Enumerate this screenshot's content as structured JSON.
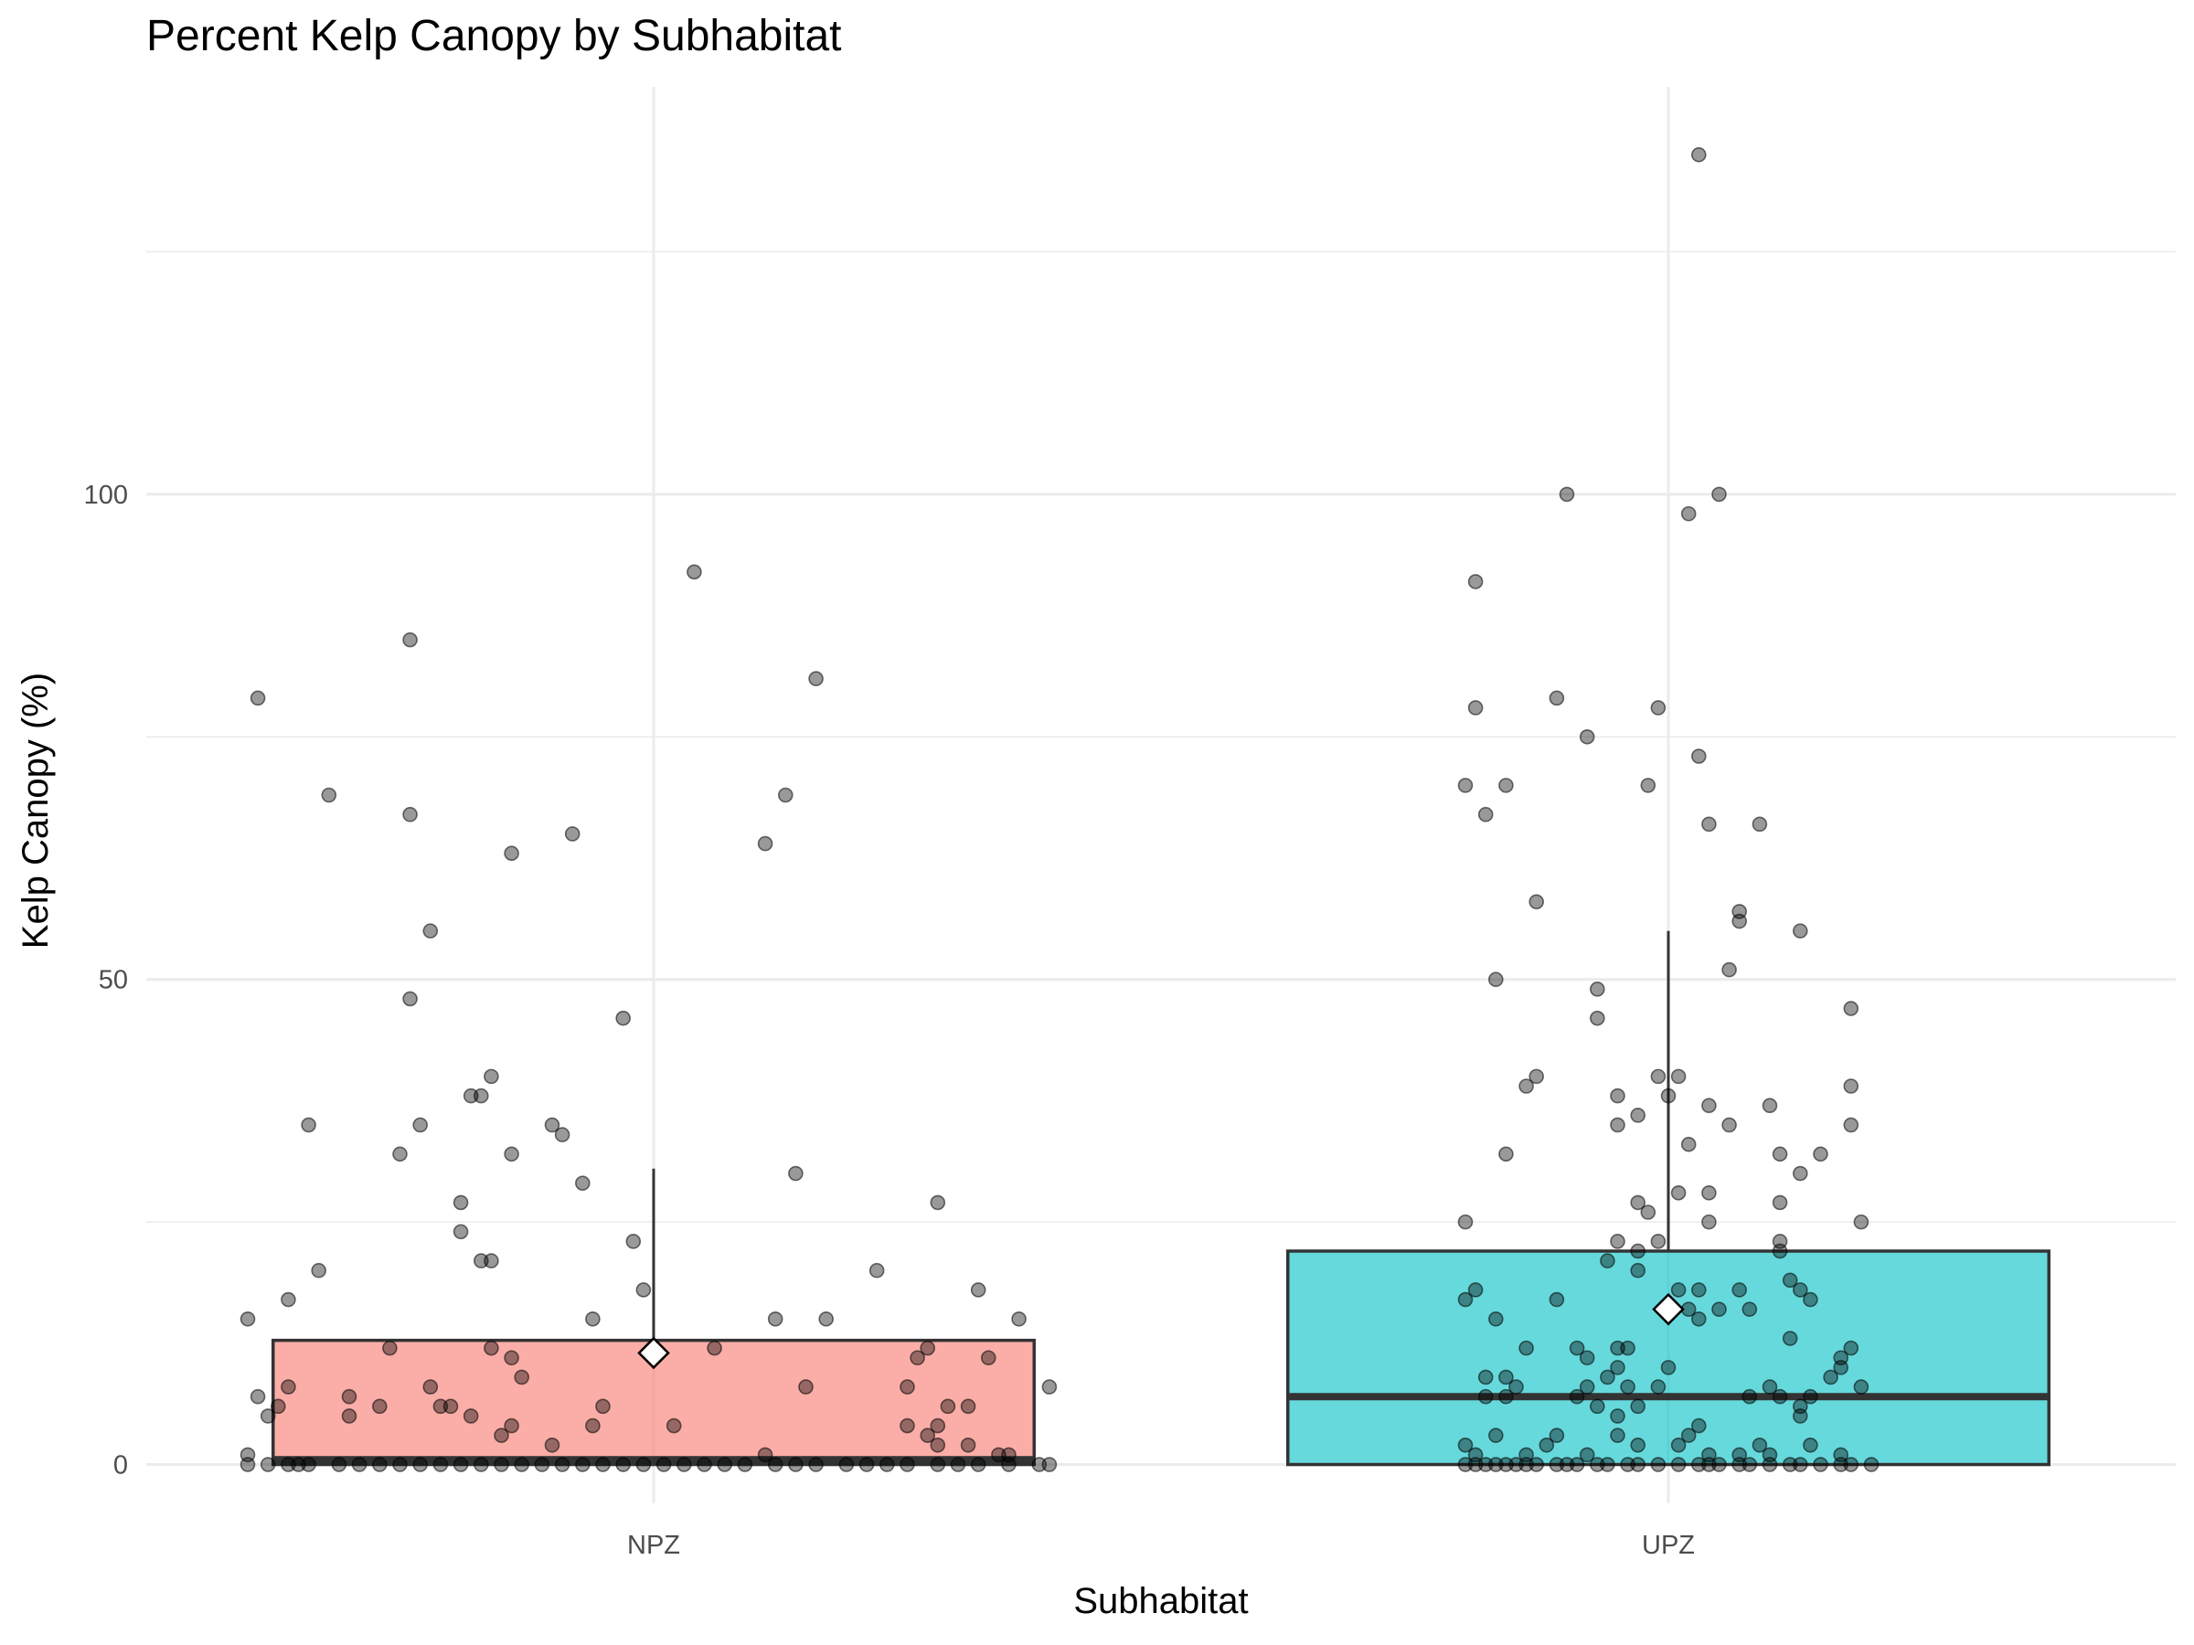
{
  "chart_data": {
    "type": "boxplot",
    "title": "Percent Kelp Canopy by Subhabitat",
    "xlabel": "Subhabitat",
    "ylabel": "Kelp Canopy (%)",
    "categories": [
      "NPZ",
      "UPZ"
    ],
    "ylim": [
      -4,
      142
    ],
    "yticks": [
      0,
      50,
      100
    ],
    "grid": true,
    "legend": "none",
    "boxes": [
      {
        "category": "NPZ",
        "color": "#F8766D",
        "q1": 0,
        "median": 0.5,
        "q3": 12.8,
        "whisker_low": 0,
        "whisker_high": 30.5,
        "mean": 11.5
      },
      {
        "category": "UPZ",
        "color": "#00BFC4",
        "q1": 0,
        "median": 7,
        "q3": 22,
        "whisker_low": 0,
        "whisker_high": 55,
        "mean": 16
      }
    ],
    "points": {
      "NPZ": [
        {
          "x": -0.39,
          "y": 79
        },
        {
          "x": 0.04,
          "y": 92
        },
        {
          "x": -0.24,
          "y": 85
        },
        {
          "x": 0.16,
          "y": 81
        },
        {
          "x": -0.32,
          "y": 69
        },
        {
          "x": 0.13,
          "y": 69
        },
        {
          "x": -0.24,
          "y": 67
        },
        {
          "x": -0.08,
          "y": 65
        },
        {
          "x": 0.11,
          "y": 64
        },
        {
          "x": -0.14,
          "y": 63
        },
        {
          "x": -0.22,
          "y": 55
        },
        {
          "x": -0.24,
          "y": 48
        },
        {
          "x": -0.03,
          "y": 46
        },
        {
          "x": -0.16,
          "y": 40
        },
        {
          "x": -0.18,
          "y": 38
        },
        {
          "x": -0.17,
          "y": 38
        },
        {
          "x": -0.34,
          "y": 35
        },
        {
          "x": -0.23,
          "y": 35
        },
        {
          "x": -0.1,
          "y": 35
        },
        {
          "x": -0.09,
          "y": 34
        },
        {
          "x": -0.25,
          "y": 32
        },
        {
          "x": -0.14,
          "y": 32
        },
        {
          "x": 0.14,
          "y": 30
        },
        {
          "x": -0.07,
          "y": 29
        },
        {
          "x": -0.19,
          "y": 27
        },
        {
          "x": 0.28,
          "y": 27
        },
        {
          "x": -0.19,
          "y": 24
        },
        {
          "x": -0.02,
          "y": 23
        },
        {
          "x": -0.17,
          "y": 21
        },
        {
          "x": -0.16,
          "y": 21
        },
        {
          "x": -0.33,
          "y": 20
        },
        {
          "x": 0.22,
          "y": 20
        },
        {
          "x": -0.36,
          "y": 17
        },
        {
          "x": -0.01,
          "y": 18
        },
        {
          "x": 0.32,
          "y": 18
        },
        {
          "x": -0.4,
          "y": 15
        },
        {
          "x": -0.06,
          "y": 15
        },
        {
          "x": 0.12,
          "y": 15
        },
        {
          "x": 0.17,
          "y": 15
        },
        {
          "x": 0.36,
          "y": 15
        },
        {
          "x": -0.26,
          "y": 12
        },
        {
          "x": -0.16,
          "y": 12
        },
        {
          "x": 0.06,
          "y": 12
        },
        {
          "x": 0.27,
          "y": 12
        },
        {
          "x": -0.14,
          "y": 11
        },
        {
          "x": 0.26,
          "y": 11
        },
        {
          "x": 0.33,
          "y": 11
        },
        {
          "x": -0.13,
          "y": 9
        },
        {
          "x": -0.36,
          "y": 8
        },
        {
          "x": -0.22,
          "y": 8
        },
        {
          "x": 0.15,
          "y": 8
        },
        {
          "x": 0.25,
          "y": 8
        },
        {
          "x": 0.39,
          "y": 8
        },
        {
          "x": -0.39,
          "y": 7
        },
        {
          "x": -0.3,
          "y": 7
        },
        {
          "x": -0.21,
          "y": 6
        },
        {
          "x": -0.37,
          "y": 6
        },
        {
          "x": -0.27,
          "y": 6
        },
        {
          "x": -0.2,
          "y": 6
        },
        {
          "x": -0.05,
          "y": 6
        },
        {
          "x": 0.29,
          "y": 6
        },
        {
          "x": 0.31,
          "y": 6
        },
        {
          "x": -0.38,
          "y": 5
        },
        {
          "x": -0.3,
          "y": 5
        },
        {
          "x": -0.18,
          "y": 5
        },
        {
          "x": -0.14,
          "y": 4
        },
        {
          "x": -0.06,
          "y": 4
        },
        {
          "x": 0.02,
          "y": 4
        },
        {
          "x": 0.25,
          "y": 4
        },
        {
          "x": 0.28,
          "y": 4
        },
        {
          "x": -0.15,
          "y": 3
        },
        {
          "x": 0.27,
          "y": 3
        },
        {
          "x": -0.1,
          "y": 2
        },
        {
          "x": 0.28,
          "y": 2
        },
        {
          "x": 0.31,
          "y": 2
        },
        {
          "x": -0.4,
          "y": 1
        },
        {
          "x": 0.11,
          "y": 1
        },
        {
          "x": 0.34,
          "y": 1
        },
        {
          "x": 0.35,
          "y": 1
        },
        {
          "x": -0.4,
          "y": 0
        },
        {
          "x": -0.38,
          "y": 0
        },
        {
          "x": -0.36,
          "y": 0
        },
        {
          "x": -0.35,
          "y": 0
        },
        {
          "x": -0.34,
          "y": 0
        },
        {
          "x": -0.31,
          "y": 0
        },
        {
          "x": -0.29,
          "y": 0
        },
        {
          "x": -0.27,
          "y": 0
        },
        {
          "x": -0.25,
          "y": 0
        },
        {
          "x": -0.23,
          "y": 0
        },
        {
          "x": -0.21,
          "y": 0
        },
        {
          "x": -0.19,
          "y": 0
        },
        {
          "x": -0.17,
          "y": 0
        },
        {
          "x": -0.15,
          "y": 0
        },
        {
          "x": -0.13,
          "y": 0
        },
        {
          "x": -0.11,
          "y": 0
        },
        {
          "x": -0.09,
          "y": 0
        },
        {
          "x": -0.07,
          "y": 0
        },
        {
          "x": -0.05,
          "y": 0
        },
        {
          "x": -0.03,
          "y": 0
        },
        {
          "x": -0.01,
          "y": 0
        },
        {
          "x": 0.01,
          "y": 0
        },
        {
          "x": 0.03,
          "y": 0
        },
        {
          "x": 0.05,
          "y": 0
        },
        {
          "x": 0.07,
          "y": 0
        },
        {
          "x": 0.09,
          "y": 0
        },
        {
          "x": 0.12,
          "y": 0
        },
        {
          "x": 0.14,
          "y": 0
        },
        {
          "x": 0.16,
          "y": 0
        },
        {
          "x": 0.19,
          "y": 0
        },
        {
          "x": 0.21,
          "y": 0
        },
        {
          "x": 0.23,
          "y": 0
        },
        {
          "x": 0.25,
          "y": 0
        },
        {
          "x": 0.28,
          "y": 0
        },
        {
          "x": 0.3,
          "y": 0
        },
        {
          "x": 0.32,
          "y": 0
        },
        {
          "x": 0.35,
          "y": 0
        },
        {
          "x": 0.38,
          "y": 0
        },
        {
          "x": 0.39,
          "y": 0
        }
      ],
      "UPZ": [
        {
          "x": 0.03,
          "y": 135
        },
        {
          "x": -0.1,
          "y": 100
        },
        {
          "x": 0.05,
          "y": 100
        },
        {
          "x": 0.02,
          "y": 98
        },
        {
          "x": -0.19,
          "y": 91
        },
        {
          "x": -0.19,
          "y": 78
        },
        {
          "x": -0.11,
          "y": 79
        },
        {
          "x": -0.01,
          "y": 78
        },
        {
          "x": -0.08,
          "y": 75
        },
        {
          "x": 0.03,
          "y": 73
        },
        {
          "x": -0.2,
          "y": 70
        },
        {
          "x": -0.16,
          "y": 70
        },
        {
          "x": -0.02,
          "y": 70
        },
        {
          "x": -0.18,
          "y": 67
        },
        {
          "x": 0.04,
          "y": 66
        },
        {
          "x": 0.09,
          "y": 66
        },
        {
          "x": -0.13,
          "y": 58
        },
        {
          "x": 0.07,
          "y": 57
        },
        {
          "x": 0.07,
          "y": 56
        },
        {
          "x": 0.13,
          "y": 55
        },
        {
          "x": 0.06,
          "y": 51
        },
        {
          "x": -0.17,
          "y": 50
        },
        {
          "x": -0.07,
          "y": 49
        },
        {
          "x": 0.18,
          "y": 47
        },
        {
          "x": -0.07,
          "y": 46
        },
        {
          "x": -0.13,
          "y": 40
        },
        {
          "x": -0.01,
          "y": 40
        },
        {
          "x": 0.01,
          "y": 40
        },
        {
          "x": -0.14,
          "y": 39
        },
        {
          "x": -0.05,
          "y": 38
        },
        {
          "x": 0.0,
          "y": 38
        },
        {
          "x": 0.18,
          "y": 39
        },
        {
          "x": 0.04,
          "y": 37
        },
        {
          "x": 0.1,
          "y": 37
        },
        {
          "x": -0.03,
          "y": 36
        },
        {
          "x": -0.05,
          "y": 35
        },
        {
          "x": 0.06,
          "y": 35
        },
        {
          "x": 0.18,
          "y": 35
        },
        {
          "x": 0.02,
          "y": 33
        },
        {
          "x": -0.16,
          "y": 32
        },
        {
          "x": 0.11,
          "y": 32
        },
        {
          "x": 0.15,
          "y": 32
        },
        {
          "x": 0.13,
          "y": 30
        },
        {
          "x": 0.01,
          "y": 28
        },
        {
          "x": 0.04,
          "y": 28
        },
        {
          "x": -0.03,
          "y": 27
        },
        {
          "x": 0.11,
          "y": 27
        },
        {
          "x": -0.02,
          "y": 26
        },
        {
          "x": -0.2,
          "y": 25
        },
        {
          "x": 0.04,
          "y": 25
        },
        {
          "x": 0.19,
          "y": 25
        },
        {
          "x": -0.05,
          "y": 23
        },
        {
          "x": -0.01,
          "y": 23
        },
        {
          "x": 0.11,
          "y": 23
        },
        {
          "x": -0.03,
          "y": 22
        },
        {
          "x": 0.11,
          "y": 22
        },
        {
          "x": -0.06,
          "y": 21
        },
        {
          "x": -0.03,
          "y": 20
        },
        {
          "x": 0.12,
          "y": 19
        },
        {
          "x": 0.13,
          "y": 18
        },
        {
          "x": -0.19,
          "y": 18
        },
        {
          "x": 0.01,
          "y": 18
        },
        {
          "x": 0.03,
          "y": 18
        },
        {
          "x": 0.07,
          "y": 18
        },
        {
          "x": 0.14,
          "y": 17
        },
        {
          "x": -0.2,
          "y": 17
        },
        {
          "x": -0.11,
          "y": 17
        },
        {
          "x": 0.02,
          "y": 16
        },
        {
          "x": 0.05,
          "y": 16
        },
        {
          "x": 0.08,
          "y": 16
        },
        {
          "x": -0.17,
          "y": 15
        },
        {
          "x": 0.03,
          "y": 15
        },
        {
          "x": 0.12,
          "y": 13
        },
        {
          "x": -0.14,
          "y": 12
        },
        {
          "x": -0.09,
          "y": 12
        },
        {
          "x": -0.05,
          "y": 12
        },
        {
          "x": -0.04,
          "y": 12
        },
        {
          "x": 0.18,
          "y": 12
        },
        {
          "x": -0.08,
          "y": 11
        },
        {
          "x": 0.17,
          "y": 11
        },
        {
          "x": -0.05,
          "y": 10
        },
        {
          "x": 0.0,
          "y": 10
        },
        {
          "x": 0.17,
          "y": 10
        },
        {
          "x": -0.18,
          "y": 9
        },
        {
          "x": -0.16,
          "y": 9
        },
        {
          "x": -0.06,
          "y": 9
        },
        {
          "x": 0.16,
          "y": 9
        },
        {
          "x": -0.15,
          "y": 8
        },
        {
          "x": -0.08,
          "y": 8
        },
        {
          "x": -0.04,
          "y": 8
        },
        {
          "x": -0.01,
          "y": 8
        },
        {
          "x": 0.1,
          "y": 8
        },
        {
          "x": 0.19,
          "y": 8
        },
        {
          "x": -0.18,
          "y": 7
        },
        {
          "x": -0.16,
          "y": 7
        },
        {
          "x": -0.09,
          "y": 7
        },
        {
          "x": 0.08,
          "y": 7
        },
        {
          "x": 0.11,
          "y": 7
        },
        {
          "x": 0.14,
          "y": 7
        },
        {
          "x": -0.07,
          "y": 6
        },
        {
          "x": -0.03,
          "y": 6
        },
        {
          "x": 0.13,
          "y": 6
        },
        {
          "x": -0.05,
          "y": 5
        },
        {
          "x": 0.13,
          "y": 5
        },
        {
          "x": -0.17,
          "y": 3
        },
        {
          "x": -0.11,
          "y": 3
        },
        {
          "x": -0.05,
          "y": 3
        },
        {
          "x": 0.03,
          "y": 4
        },
        {
          "x": -0.2,
          "y": 2
        },
        {
          "x": -0.12,
          "y": 2
        },
        {
          "x": -0.03,
          "y": 2
        },
        {
          "x": 0.01,
          "y": 2
        },
        {
          "x": 0.09,
          "y": 2
        },
        {
          "x": 0.14,
          "y": 2
        },
        {
          "x": 0.02,
          "y": 3
        },
        {
          "x": -0.19,
          "y": 1
        },
        {
          "x": -0.14,
          "y": 1
        },
        {
          "x": -0.08,
          "y": 1
        },
        {
          "x": 0.04,
          "y": 1
        },
        {
          "x": 0.07,
          "y": 1
        },
        {
          "x": 0.17,
          "y": 1
        },
        {
          "x": 0.1,
          "y": 1
        },
        {
          "x": -0.2,
          "y": 0
        },
        {
          "x": -0.19,
          "y": 0
        },
        {
          "x": -0.18,
          "y": 0
        },
        {
          "x": -0.17,
          "y": 0
        },
        {
          "x": -0.16,
          "y": 0
        },
        {
          "x": -0.15,
          "y": 0
        },
        {
          "x": -0.14,
          "y": 0
        },
        {
          "x": -0.13,
          "y": 0
        },
        {
          "x": -0.11,
          "y": 0
        },
        {
          "x": -0.1,
          "y": 0
        },
        {
          "x": -0.09,
          "y": 0
        },
        {
          "x": -0.07,
          "y": 0
        },
        {
          "x": -0.06,
          "y": 0
        },
        {
          "x": -0.04,
          "y": 0
        },
        {
          "x": -0.03,
          "y": 0
        },
        {
          "x": -0.01,
          "y": 0
        },
        {
          "x": 0.01,
          "y": 0
        },
        {
          "x": 0.03,
          "y": 0
        },
        {
          "x": 0.04,
          "y": 0
        },
        {
          "x": 0.05,
          "y": 0
        },
        {
          "x": 0.07,
          "y": 0
        },
        {
          "x": 0.08,
          "y": 0
        },
        {
          "x": 0.1,
          "y": 0
        },
        {
          "x": 0.12,
          "y": 0
        },
        {
          "x": 0.13,
          "y": 0
        },
        {
          "x": 0.15,
          "y": 0
        },
        {
          "x": 0.17,
          "y": 0
        },
        {
          "x": 0.18,
          "y": 0
        },
        {
          "x": 0.2,
          "y": 0
        }
      ]
    }
  }
}
